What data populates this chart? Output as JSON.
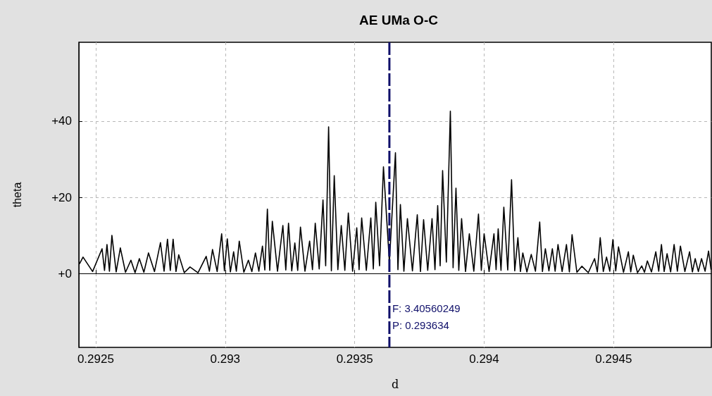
{
  "chart_data": {
    "type": "line",
    "title": "AE UMa O-C",
    "xlabel": "d",
    "ylabel": "theta",
    "xlim": [
      0.292435,
      0.294877
    ],
    "xticks": [
      0.2925,
      0.293,
      0.2935,
      0.294,
      0.2945
    ],
    "ylim": [
      -19.4,
      60.7
    ],
    "yticks": [
      {
        "value": 0,
        "label": "+0"
      },
      {
        "value": 20,
        "label": "+20"
      },
      {
        "value": 40,
        "label": "+40"
      }
    ],
    "grid": true,
    "ref_lines": [
      {
        "axis": "x",
        "value": 0.293634,
        "label": null,
        "color": "#10106a",
        "line_style": "dashed"
      }
    ],
    "annotations": [
      "F: 3.40560249",
      "P: 0.293634"
    ],
    "series": [
      {
        "color": "#000000",
        "x": [
          0.292437,
          0.2924511,
          0.292488,
          0.2925245,
          0.292534,
          0.2925435,
          0.292553,
          0.2925625,
          0.292579,
          0.2925951,
          0.292615,
          0.2926359,
          0.292652,
          0.2926685,
          0.292686,
          0.2927038,
          0.292727,
          0.29275,
          0.292764,
          0.2927771,
          0.292788,
          0.2927989,
          0.29281,
          0.2928206,
          0.292842,
          0.2928641,
          0.292895,
          0.2929266,
          0.292939,
          0.292951,
          0.292969,
          0.2929863,
          0.292997,
          0.2930081,
          0.29302,
          0.2930325,
          0.293043,
          0.2930543,
          0.293072,
          0.2930896,
          0.293103,
          0.2931168,
          0.29313,
          0.2931439,
          0.293153,
          0.2931629,
          0.293172,
          0.293182,
          0.293202,
          0.2932227,
          0.293234,
          0.2932445,
          0.293257,
          0.2932689,
          0.29328,
          0.2932906,
          0.293308,
          0.293326,
          0.293337,
          0.2933477,
          0.293363,
          0.2933776,
          0.293388,
          0.2933993,
          0.29341,
          0.2934211,
          0.293435,
          0.2934482,
          0.293462,
          0.2934754,
          0.293492,
          0.293508,
          0.293517,
          0.293527,
          0.293545,
          0.2935623,
          0.293572,
          0.2935814,
          0.293596,
          0.2936111,
          0.293634,
          0.2936574,
          0.293667,
          0.2936765,
          0.29369,
          0.2937036,
          0.293723,
          0.2937417,
          0.293754,
          0.2937661,
          0.293782,
          0.2937987,
          0.29381,
          0.2938205,
          0.29383,
          0.2938395,
          0.293854,
          0.2938694,
          0.29388,
          0.2938911,
          0.293902,
          0.2939128,
          0.293928,
          0.2939427,
          0.29396,
          0.293978,
          0.293989,
          0.2939998,
          0.294019,
          0.2940378,
          0.294046,
          0.2940541,
          0.294065,
          0.2940759,
          0.294091,
          0.2941057,
          0.294118,
          0.2941302,
          0.29414,
          0.2941492,
          0.294165,
          0.2941818,
          0.294198,
          0.2942144,
          0.294225,
          0.2942362,
          0.29425,
          0.2942633,
          0.294274,
          0.2942851,
          0.294301,
          0.2943177,
          0.294329,
          0.2943394,
          0.294358,
          0.2943774,
          0.294402,
          0.2944264,
          0.294437,
          0.2944481,
          0.29446,
          0.2944725,
          0.294485,
          0.294497,
          0.294508,
          0.2945187,
          0.294538,
          0.2945568,
          0.294566,
          0.2945758,
          0.294592,
          0.2946084,
          0.294619,
          0.2946301,
          0.294646,
          0.2946627,
          0.294674,
          0.2946845,
          0.294695,
          0.2947062,
          0.29472,
          0.2947334,
          0.294746,
          0.2947578,
          0.294775,
          0.2947931,
          0.294804,
          0.2948148,
          0.294827,
          0.2948393,
          0.294853,
          0.2948665,
          0.294876
        ],
        "values": [
          2.5,
          4.3,
          0.5,
          6.5,
          0.8,
          7.6,
          0.6,
          10,
          0.4,
          6.7,
          0.3,
          3.5,
          0.2,
          3.9,
          0.3,
          5.4,
          0.5,
          8.1,
          0.6,
          9,
          0.8,
          9,
          0.5,
          4.9,
          0.2,
          1.7,
          0.2,
          4.5,
          0.6,
          6.3,
          0.5,
          10.4,
          0.7,
          9.1,
          0.4,
          5.7,
          0.6,
          8.5,
          0.3,
          3.5,
          0.5,
          5.4,
          0.6,
          7.2,
          0.9,
          16.9,
          0.8,
          13.7,
          0.6,
          12.6,
          0.9,
          13.2,
          0.7,
          8,
          0.8,
          12.2,
          0.6,
          8.5,
          1,
          13.2,
          1.2,
          19.3,
          2,
          38.5,
          0.7,
          25.7,
          1,
          12.6,
          0.8,
          15.9,
          0.6,
          12,
          1,
          14.6,
          0.8,
          14.6,
          1.2,
          18.7,
          2,
          28,
          3,
          31.7,
          1,
          18.1,
          0.6,
          14.4,
          0.7,
          15.4,
          0.5,
          14.1,
          0.8,
          14.4,
          1,
          17.8,
          2,
          27,
          3,
          42.6,
          1.5,
          22.4,
          0.8,
          14.4,
          0.5,
          10.4,
          0.6,
          15.6,
          0.8,
          10.4,
          0.5,
          10.4,
          1,
          11.7,
          0.8,
          17.4,
          0.9,
          24.6,
          0.7,
          9.4,
          0.5,
          5.4,
          0.4,
          5,
          0.6,
          13.5,
          0.5,
          6.5,
          0.7,
          6.5,
          0.6,
          7.6,
          0.5,
          7.6,
          0.4,
          10.2,
          0.3,
          1.9,
          0.2,
          3.9,
          0.4,
          9.4,
          0.5,
          4.3,
          0.6,
          8.9,
          0.7,
          7,
          0.3,
          5.7,
          0.4,
          4.8,
          0.2,
          2,
          0.3,
          3.3,
          0.4,
          5.7,
          0.6,
          7.6,
          0.5,
          5.2,
          0.4,
          7.6,
          0.6,
          7.2,
          0.5,
          5.7,
          0.4,
          3.9,
          0.5,
          3.9,
          0.6,
          5.9,
          1
        ]
      }
    ]
  }
}
